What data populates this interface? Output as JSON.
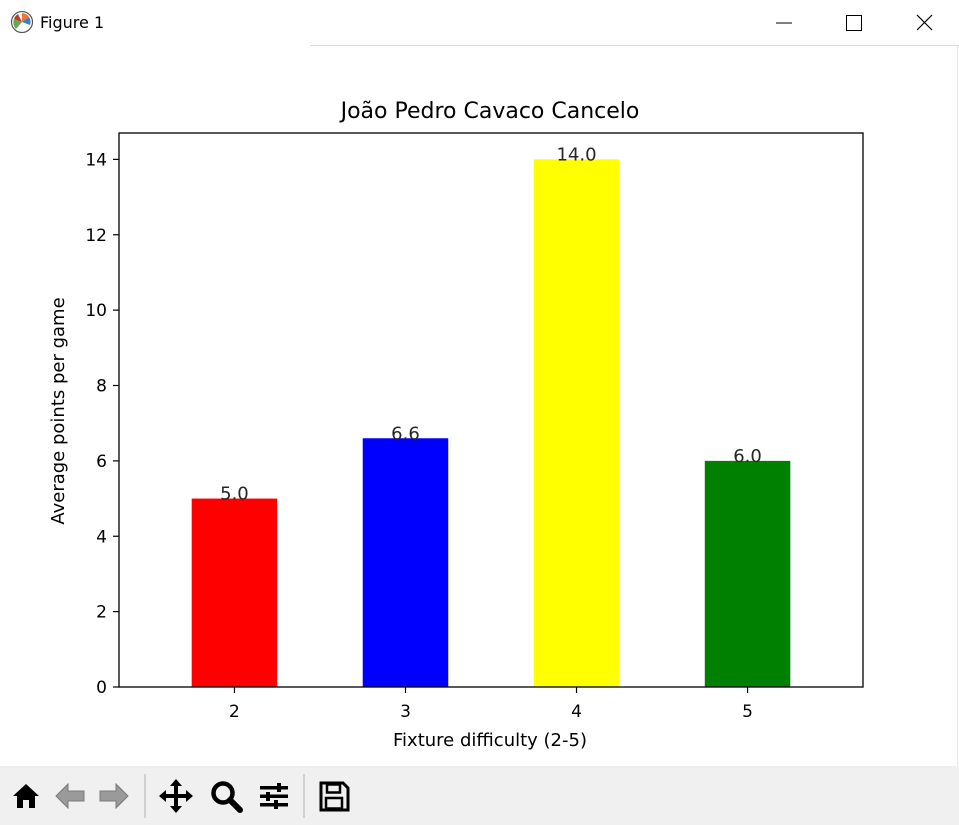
{
  "window": {
    "title": "Figure 1"
  },
  "toolbar": {
    "icons": [
      "home-icon",
      "back-arrow-icon",
      "forward-arrow-icon",
      "pan-icon",
      "zoom-icon",
      "configure-subplots-icon",
      "save-icon"
    ]
  },
  "chart_data": {
    "type": "bar",
    "title": "João Pedro Cavaco Cancelo",
    "xlabel": "Fixture difficulty (2-5)",
    "ylabel": "Average points per game",
    "categories": [
      "2",
      "3",
      "4",
      "5"
    ],
    "values": [
      5.0,
      6.6,
      14.0,
      6.0
    ],
    "value_labels": [
      "5.0",
      "6.6",
      "14.0",
      "6.0"
    ],
    "colors": [
      "#ff0000",
      "#0000ff",
      "#ffff00",
      "#008000"
    ],
    "ylim": [
      0,
      14.7
    ],
    "yticks": [
      "0",
      "2",
      "4",
      "6",
      "8",
      "10",
      "12",
      "14"
    ],
    "grid": false
  }
}
